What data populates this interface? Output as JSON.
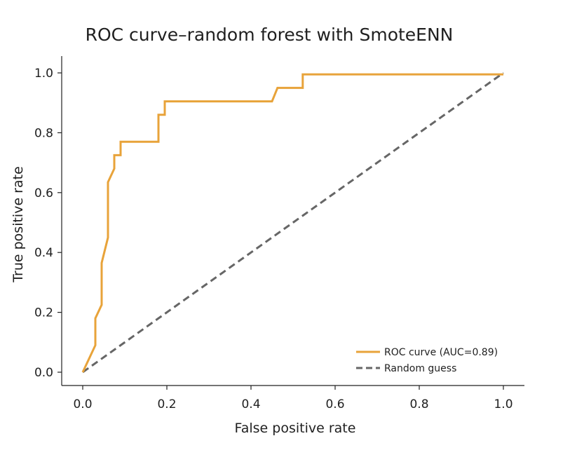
{
  "chart_data": {
    "type": "line",
    "title": "ROC curve–random forest with SmoteENN",
    "xlabel": "False positive rate",
    "ylabel": "True positive rate",
    "xlim": [
      0.0,
      1.0
    ],
    "ylim": [
      0.0,
      1.0
    ],
    "xticks": [
      "0.0",
      "0.2",
      "0.4",
      "0.6",
      "0.8",
      "1.0"
    ],
    "yticks": [
      "0.0",
      "0.2",
      "0.4",
      "0.6",
      "0.8",
      "1.0"
    ],
    "grid": false,
    "legend_position": "bottom-right",
    "series": [
      {
        "name": "ROC curve (AUC=0.89)",
        "color": "#E8A33A",
        "style": "solid",
        "x": [
          0.0,
          0.03,
          0.03,
          0.045,
          0.045,
          0.06,
          0.06,
          0.075,
          0.075,
          0.09,
          0.09,
          0.18,
          0.18,
          0.195,
          0.195,
          0.45,
          0.463,
          0.523,
          0.523,
          1.0
        ],
        "y": [
          0.0,
          0.09,
          0.18,
          0.225,
          0.365,
          0.45,
          0.635,
          0.68,
          0.725,
          0.725,
          0.77,
          0.77,
          0.86,
          0.86,
          0.905,
          0.905,
          0.95,
          0.95,
          0.995,
          0.995
        ]
      },
      {
        "name": "Random guess",
        "color": "#666666",
        "style": "dashed",
        "x": [
          0.0,
          1.0
        ],
        "y": [
          0.0,
          1.0
        ]
      }
    ]
  }
}
